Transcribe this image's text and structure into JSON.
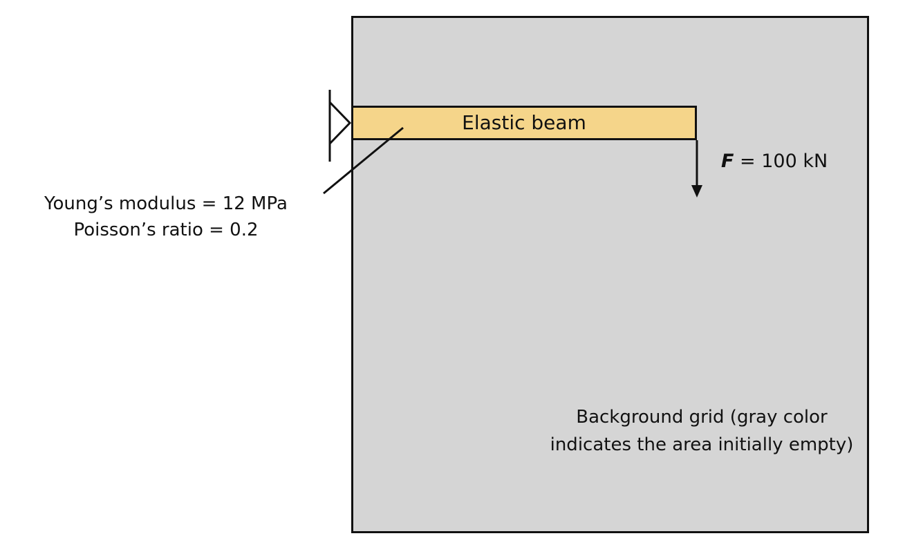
{
  "colors": {
    "background_grid": "#d5d5d5",
    "beam_fill": "#f5d58a",
    "stroke": "#111111"
  },
  "beam": {
    "label": "Elastic beam"
  },
  "force": {
    "symbol": "F",
    "value_text": " = 100 kN"
  },
  "material": {
    "line1": "Young’s modulus = 12 MPa",
    "line2": "Poisson’s ratio = 0.2"
  },
  "background_grid": {
    "caption": "Background grid (gray color indicates the area initially empty)"
  },
  "icons": {
    "support": "pin-support-icon",
    "load": "arrow-down-icon"
  }
}
